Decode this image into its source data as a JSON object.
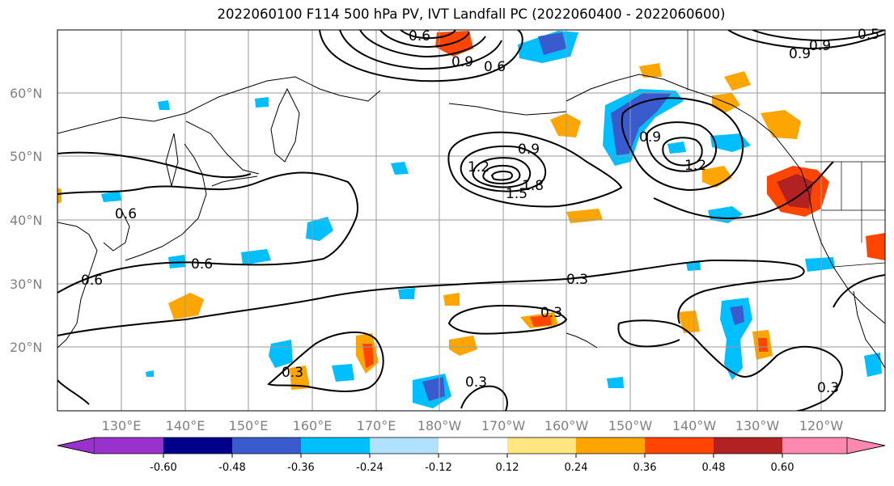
{
  "title": "2022060100 F114 500 hPa PV, IVT Landfall PC (2022060400 - 2022060600)",
  "lat_labels": [
    "60°N",
    "50°N",
    "40°N",
    "30°N",
    "20°N"
  ],
  "lon_labels": [
    "130°E",
    "140°E",
    "150°E",
    "160°E",
    "170°E",
    "180°W",
    "170°W",
    "160°W",
    "150°W",
    "140°W",
    "130°W",
    "120°W"
  ],
  "contour_labels": [
    "0.9",
    "0.6",
    "1.2",
    "0.9",
    "1.8",
    "1.5",
    "0.9",
    "1.2",
    "0.9",
    "0.6",
    "0.6",
    "0.6",
    "0.3",
    "0.3",
    "0.3",
    "0.3",
    "0.3",
    "0.6",
    "0.9",
    "0.5"
  ],
  "colorbar": {
    "tick_labels": [
      "-0.60",
      "-0.48",
      "-0.36",
      "-0.24",
      "-0.12",
      "0.12",
      "0.24",
      "0.36",
      "0.48",
      "0.60"
    ],
    "colors": [
      "#9932cc",
      "#00008b",
      "#3a5bcd",
      "#00bfff",
      "#b0e2ff",
      "#ffffff",
      "#ffe680",
      "#ffa500",
      "#ff4500",
      "#b22222",
      "#ff88b0"
    ]
  }
}
